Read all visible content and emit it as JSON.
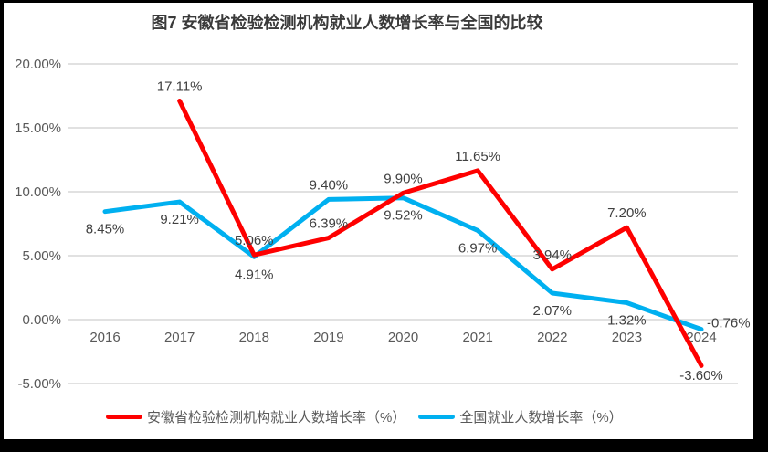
{
  "title": "图7 安徽省检验检测机构就业人数增长率与全国的比较",
  "chart_data": {
    "type": "line",
    "title": "图7 安徽省检验检测机构就业人数增长率与全国的比较",
    "categories": [
      "2016",
      "2017",
      "2018",
      "2019",
      "2020",
      "2021",
      "2022",
      "2023",
      "2024"
    ],
    "series": [
      {
        "name": "安徽省检验检测机构就业人数增长率（%）",
        "color": "#fe0000",
        "values": [
          null,
          17.11,
          5.06,
          6.39,
          9.9,
          11.65,
          3.94,
          7.2,
          -3.6
        ],
        "labels": [
          null,
          "17.11%",
          "5.06%",
          "6.39%",
          "9.90%",
          "11.65%",
          "3.94%",
          "7.20%",
          "-3.60%"
        ],
        "label_positions": [
          null,
          "above",
          "above",
          "above",
          "above",
          "above",
          "above",
          "above",
          "below"
        ]
      },
      {
        "name": "全国就业人数增长率（%）",
        "color": "#00b0f0",
        "values": [
          8.45,
          9.21,
          4.91,
          9.4,
          9.52,
          6.97,
          2.07,
          1.32,
          -0.76
        ],
        "labels": [
          "8.45%",
          "9.21%",
          "4.91%",
          "9.40%",
          "9.52%",
          "6.97%",
          "2.07%",
          "1.32%",
          "-0.76%"
        ],
        "label_positions": [
          "below",
          "below",
          "below",
          "above",
          "below",
          "below",
          "below",
          "below",
          "right"
        ]
      }
    ],
    "y_axis": {
      "tick_labels": [
        "20.00%",
        "15.00%",
        "10.00%",
        "5.00%",
        "0.00%",
        "-5.00%"
      ],
      "tick_values": [
        20,
        15,
        10,
        5,
        0,
        -5
      ],
      "ylim": [
        -5,
        20
      ]
    },
    "xlabel": "",
    "ylabel": "",
    "grid": true,
    "legend_position": "bottom"
  },
  "colors": {
    "gridline": "#dddddd",
    "axis_text": "#595959",
    "data_label_text": "#404040",
    "title_text": "#3a3a3a",
    "frame": "#000000",
    "background": "#ffffff"
  }
}
